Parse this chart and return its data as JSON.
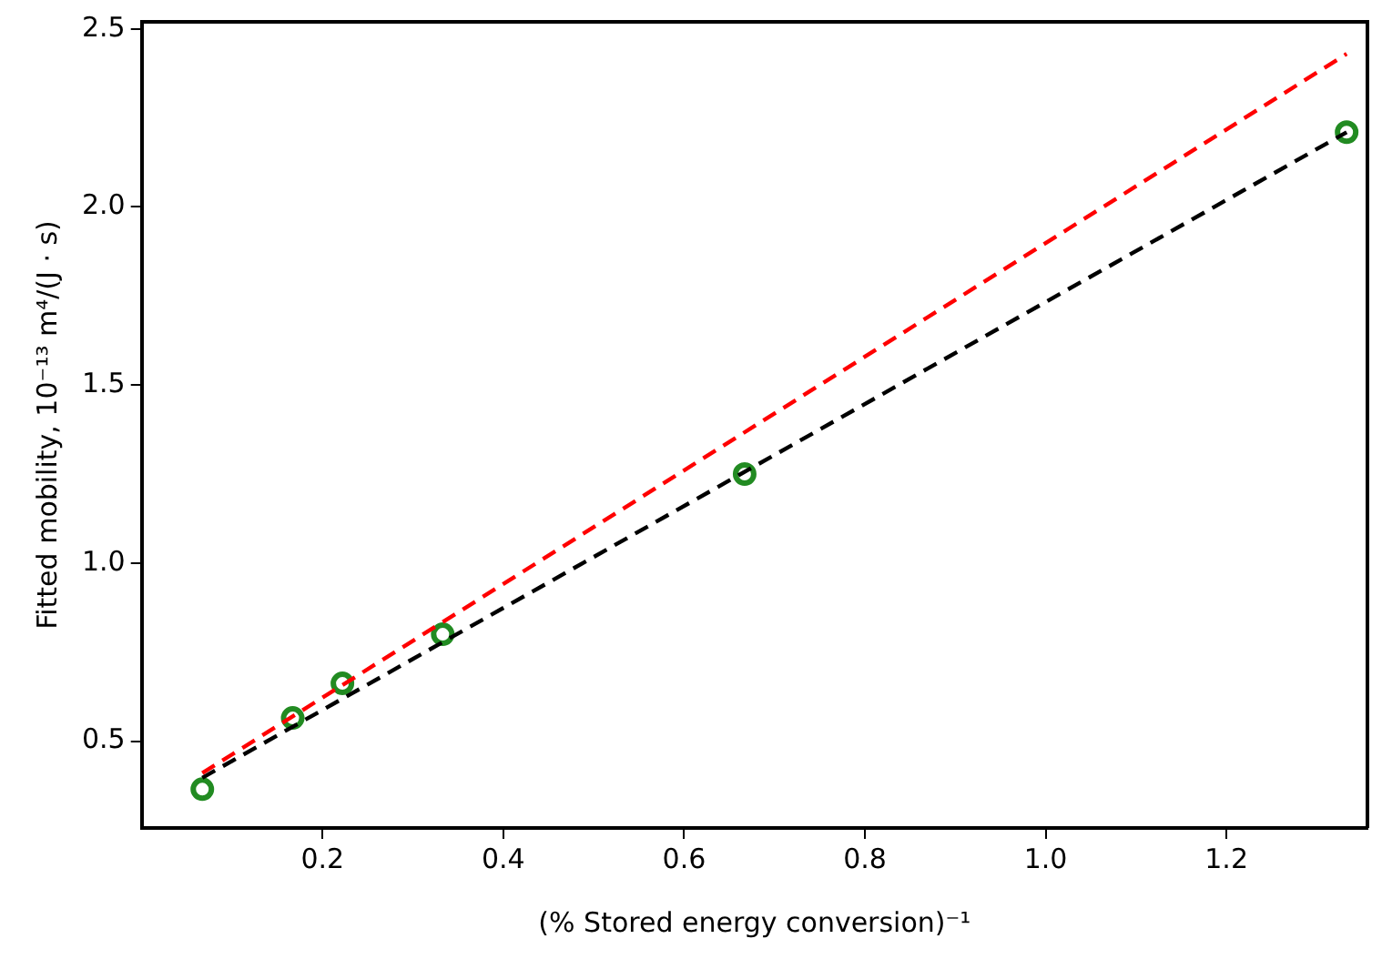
{
  "chart_data": {
    "type": "scatter",
    "xlabel": "(% Stored energy conversion)⁻¹",
    "ylabel": "Fitted mobility, 10⁻¹³ m⁴/(J · s)",
    "xlim": [
      0.0,
      1.356
    ],
    "ylim": [
      0.256,
      2.52
    ],
    "xticks": [
      0.2,
      0.4,
      0.6,
      0.8,
      {
        "value": 1,
        "label": "1.0"
      },
      1.2
    ],
    "yticks": [
      0.5,
      {
        "value": 1,
        "label": "1.0"
      },
      1.5,
      {
        "value": 2,
        "label": "2.0"
      },
      2.5
    ],
    "grid": false,
    "legend": false,
    "series": [
      {
        "type": "line",
        "color": "#ff0000",
        "line_style": "dashed",
        "marker": "none",
        "x": [
          0.067,
          1.333
        ],
        "values": [
          0.41,
          2.43
        ]
      },
      {
        "type": "line",
        "color": "#000000",
        "line_style": "dashed",
        "marker": "none",
        "x": [
          0.067,
          1.333
        ],
        "values": [
          0.397,
          2.21
        ]
      },
      {
        "type": "scatter",
        "color": "#228b22",
        "marker": "circle",
        "x": [
          0.067,
          0.167,
          0.222,
          0.333,
          0.667,
          1.333
        ],
        "values": [
          0.365,
          0.565,
          0.662,
          0.8,
          1.25,
          2.21
        ]
      }
    ]
  }
}
